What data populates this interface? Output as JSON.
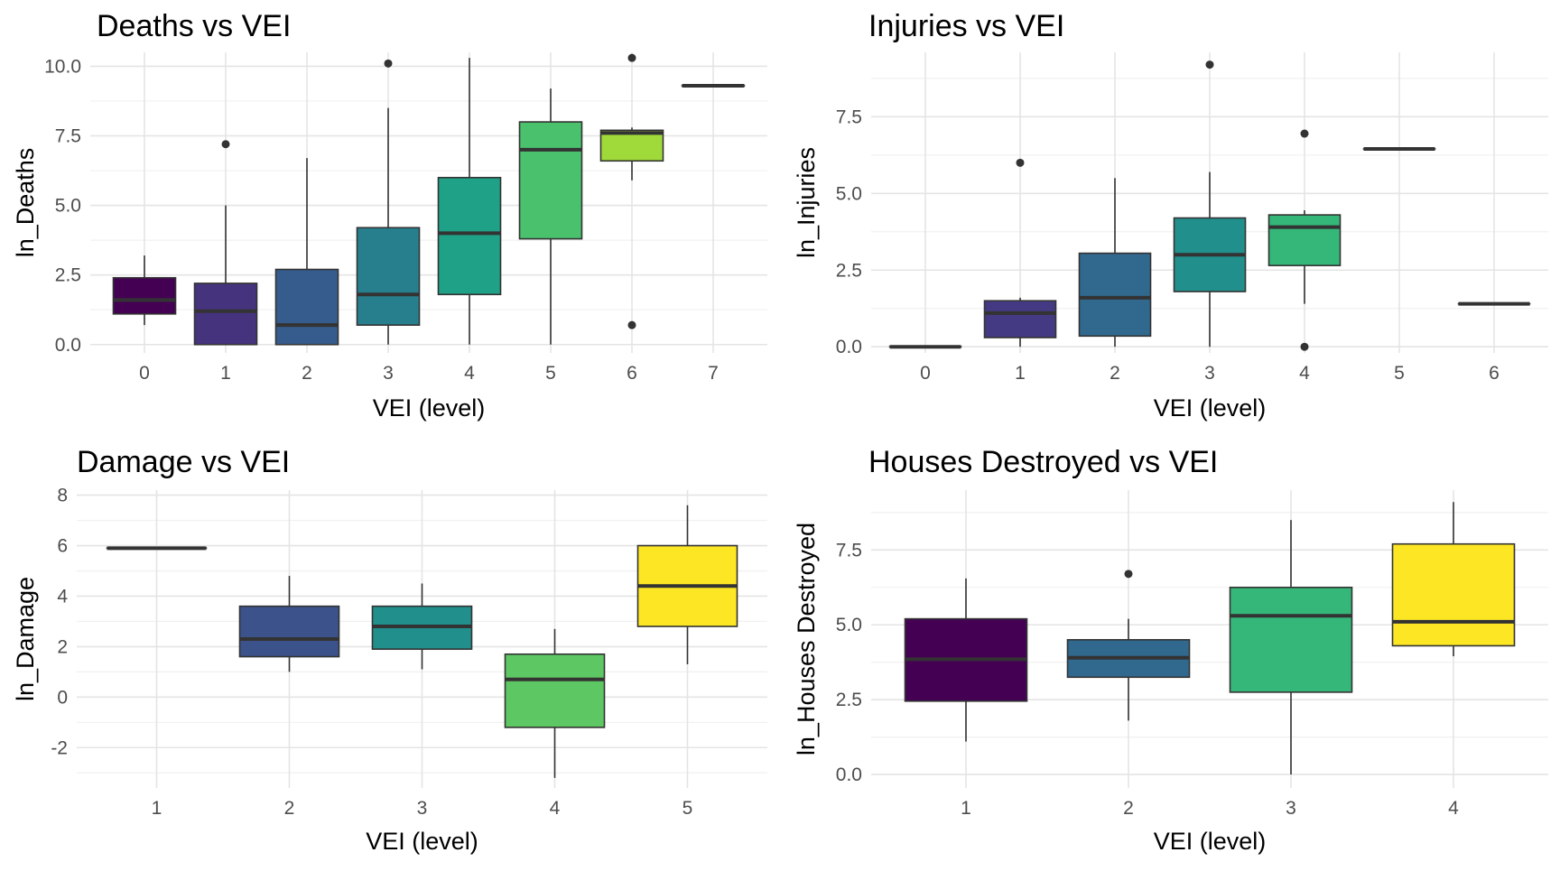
{
  "chart_data": [
    {
      "id": "deaths",
      "type": "boxplot",
      "title": "Deaths vs VEI",
      "xlabel": "VEI (level)",
      "ylabel": "ln_Deaths",
      "categories": [
        "0",
        "1",
        "2",
        "3",
        "4",
        "5",
        "6",
        "7"
      ],
      "ylim": [
        -0.3,
        10.5
      ],
      "y_ticks": [
        0.0,
        2.5,
        5.0,
        7.5,
        10.0
      ],
      "y_tick_labels": [
        "0.0",
        "2.5",
        "5.0",
        "7.5",
        "10.0"
      ],
      "grid": true,
      "boxes": [
        {
          "x": "0",
          "min": 0.7,
          "q1": 1.1,
          "median": 1.6,
          "q3": 2.4,
          "max": 3.2,
          "outliers": [],
          "color": "#440154"
        },
        {
          "x": "1",
          "min": 0.0,
          "q1": 0.0,
          "median": 1.2,
          "q3": 2.2,
          "max": 5.0,
          "outliers": [
            7.2
          ],
          "color": "#46337E"
        },
        {
          "x": "2",
          "min": 0.0,
          "q1": 0.0,
          "median": 0.7,
          "q3": 2.7,
          "max": 6.7,
          "outliers": [],
          "color": "#365C8D"
        },
        {
          "x": "3",
          "min": 0.0,
          "q1": 0.7,
          "median": 1.8,
          "q3": 4.2,
          "max": 8.5,
          "outliers": [
            10.1
          ],
          "color": "#277F8E"
        },
        {
          "x": "4",
          "min": 0.0,
          "q1": 1.8,
          "median": 4.0,
          "q3": 6.0,
          "max": 10.3,
          "outliers": [],
          "color": "#1FA187"
        },
        {
          "x": "5",
          "min": 0.0,
          "q1": 3.8,
          "median": 7.0,
          "q3": 8.0,
          "max": 9.2,
          "outliers": [],
          "color": "#4AC16D"
        },
        {
          "x": "6",
          "min": 5.9,
          "q1": 6.6,
          "median": 7.6,
          "q3": 7.7,
          "max": 7.8,
          "outliers": [
            10.3,
            0.7
          ],
          "color": "#9FDA3A"
        },
        {
          "x": "7",
          "min": 9.3,
          "q1": 9.3,
          "median": 9.3,
          "q3": 9.3,
          "max": 9.3,
          "outliers": [],
          "color": "#FDE725"
        }
      ]
    },
    {
      "id": "injuries",
      "type": "boxplot",
      "title": "Injuries vs VEI",
      "xlabel": "VEI (level)",
      "ylabel": "ln_Injuries",
      "categories": [
        "0",
        "1",
        "2",
        "3",
        "4",
        "5",
        "6"
      ],
      "ylim": [
        -0.2,
        9.6
      ],
      "y_ticks": [
        0.0,
        2.5,
        5.0,
        7.5
      ],
      "y_tick_labels": [
        "0.0",
        "2.5",
        "5.0",
        "7.5"
      ],
      "grid": true,
      "boxes": [
        {
          "x": "0",
          "min": 0.0,
          "q1": 0.0,
          "median": 0.0,
          "q3": 0.0,
          "max": 0.0,
          "outliers": [],
          "color": "#440154"
        },
        {
          "x": "1",
          "min": 0.0,
          "q1": 0.3,
          "median": 1.1,
          "q3": 1.5,
          "max": 1.6,
          "outliers": [
            6.0
          ],
          "color": "#443A83"
        },
        {
          "x": "2",
          "min": 0.0,
          "q1": 0.35,
          "median": 1.6,
          "q3": 3.05,
          "max": 5.5,
          "outliers": [],
          "color": "#31688E"
        },
        {
          "x": "3",
          "min": 0.0,
          "q1": 1.8,
          "median": 3.0,
          "q3": 4.2,
          "max": 5.7,
          "outliers": [
            9.2
          ],
          "color": "#21908D"
        },
        {
          "x": "4",
          "min": 1.4,
          "q1": 2.65,
          "median": 3.9,
          "q3": 4.3,
          "max": 4.45,
          "outliers": [
            6.95,
            0.0
          ],
          "color": "#35B779"
        },
        {
          "x": "5",
          "min": 6.45,
          "q1": 6.45,
          "median": 6.45,
          "q3": 6.45,
          "max": 6.45,
          "outliers": [],
          "color": "#8FD744"
        },
        {
          "x": "6",
          "min": 1.4,
          "q1": 1.4,
          "median": 1.4,
          "q3": 1.4,
          "max": 1.4,
          "outliers": [],
          "color": "#FDE725"
        }
      ]
    },
    {
      "id": "damage",
      "type": "boxplot",
      "title": "Damage vs VEI",
      "xlabel": "VEI (level)",
      "ylabel": "ln_Damage",
      "categories": [
        "1",
        "2",
        "3",
        "4",
        "5"
      ],
      "ylim": [
        -3.6,
        8.2
      ],
      "y_ticks": [
        -2,
        0,
        2,
        4,
        6,
        8
      ],
      "y_tick_labels": [
        "-2",
        "0",
        "2",
        "4",
        "6",
        "8"
      ],
      "grid": true,
      "boxes": [
        {
          "x": "1",
          "min": 5.9,
          "q1": 5.9,
          "median": 5.9,
          "q3": 5.9,
          "max": 5.9,
          "outliers": [],
          "color": "#440154"
        },
        {
          "x": "2",
          "min": 1.0,
          "q1": 1.6,
          "median": 2.3,
          "q3": 3.6,
          "max": 4.8,
          "outliers": [],
          "color": "#3B528B"
        },
        {
          "x": "3",
          "min": 1.1,
          "q1": 1.9,
          "median": 2.8,
          "q3": 3.6,
          "max": 4.5,
          "outliers": [],
          "color": "#21908C"
        },
        {
          "x": "4",
          "min": -3.2,
          "q1": -1.2,
          "median": 0.7,
          "q3": 1.7,
          "max": 2.7,
          "outliers": [],
          "color": "#5DC863"
        },
        {
          "x": "5",
          "min": 1.3,
          "q1": 2.8,
          "median": 4.4,
          "q3": 6.0,
          "max": 7.6,
          "outliers": [],
          "color": "#FDE725"
        }
      ]
    },
    {
      "id": "houses",
      "type": "boxplot",
      "title": "Houses Destroyed vs VEI",
      "xlabel": "VEI (level)",
      "ylabel": "ln_Houses Destroyed",
      "categories": [
        "1",
        "2",
        "3",
        "4"
      ],
      "ylim": [
        -0.45,
        9.5
      ],
      "y_ticks": [
        0.0,
        2.5,
        5.0,
        7.5
      ],
      "y_tick_labels": [
        "0.0",
        "2.5",
        "5.0",
        "7.5"
      ],
      "grid": true,
      "boxes": [
        {
          "x": "1",
          "min": 1.1,
          "q1": 2.45,
          "median": 3.85,
          "q3": 5.2,
          "max": 6.55,
          "outliers": [],
          "color": "#440154"
        },
        {
          "x": "2",
          "min": 1.8,
          "q1": 3.25,
          "median": 3.9,
          "q3": 4.5,
          "max": 5.2,
          "outliers": [
            6.7
          ],
          "color": "#31688E"
        },
        {
          "x": "3",
          "min": 0.0,
          "q1": 2.75,
          "median": 5.3,
          "q3": 6.25,
          "max": 8.5,
          "outliers": [],
          "color": "#35B779"
        },
        {
          "x": "4",
          "min": 3.95,
          "q1": 4.3,
          "median": 5.1,
          "q3": 7.7,
          "max": 9.1,
          "outliers": [],
          "color": "#FDE725"
        }
      ]
    }
  ]
}
